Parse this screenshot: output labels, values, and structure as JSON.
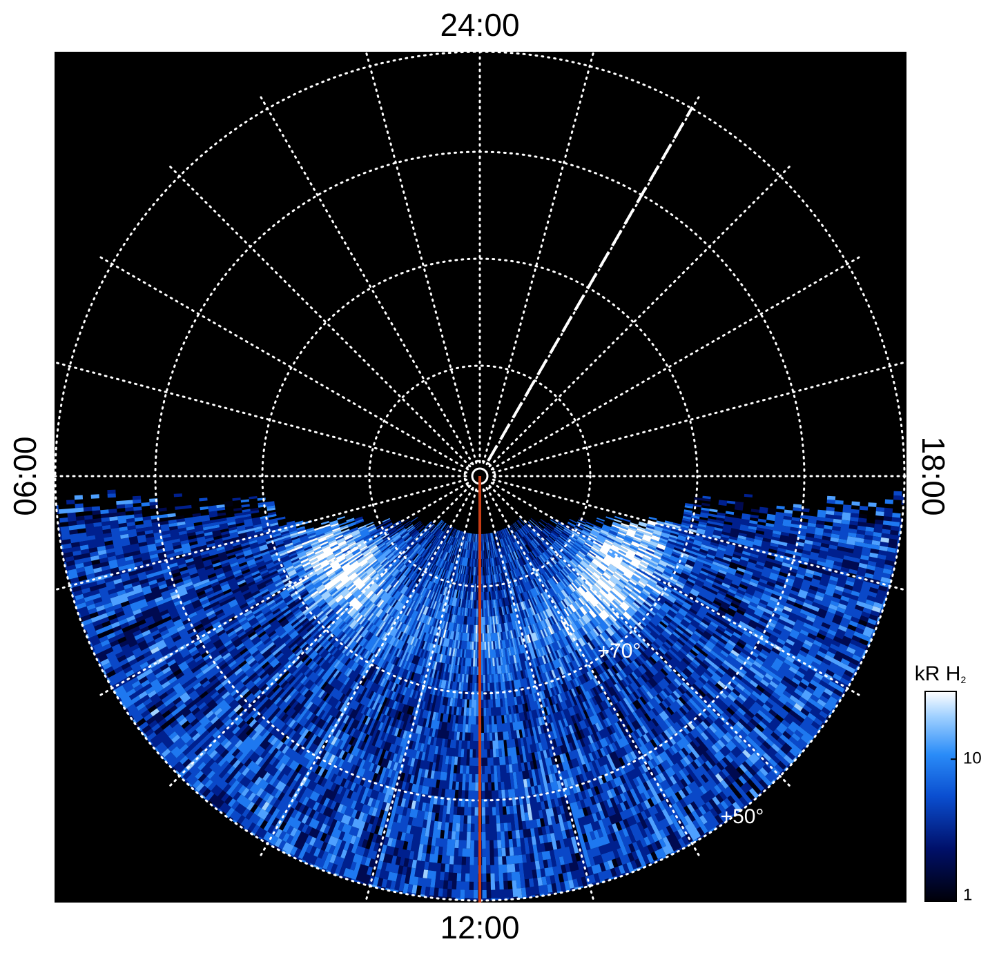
{
  "plot": {
    "type": "polar-map",
    "time_labels": {
      "top": "24:00",
      "bottom": "12:00",
      "left": "06:00",
      "right": "18:00"
    },
    "latitude_labels": [
      "+70°",
      "+50°"
    ]
  },
  "colorbar": {
    "label": "kR H",
    "label_sub": "2",
    "scale": "log",
    "lim": [
      1,
      30
    ],
    "ticks": [
      1,
      10
    ]
  }
}
